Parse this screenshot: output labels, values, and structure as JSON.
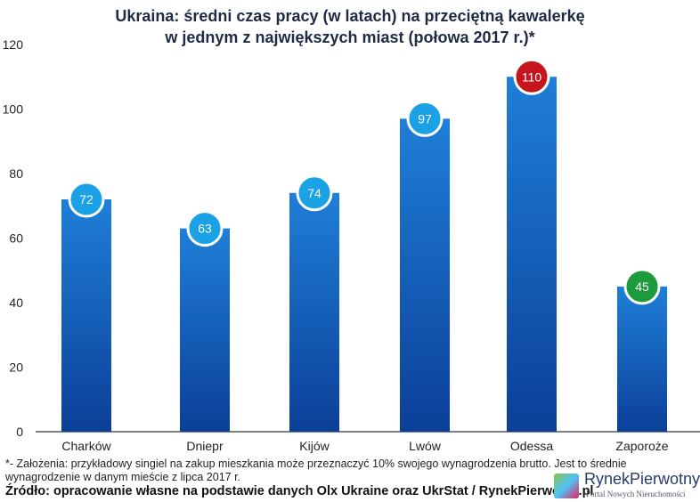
{
  "chart_data": {
    "type": "bar",
    "title": "Ukraina: średni czas pracy (w latach) na przeciętną kawalerkę w jednym z największych miast (połowa 2017 r.)*",
    "title_lines": [
      "Ukraina: średni czas pracy (w latach) na przeciętną kawalerkę",
      "w jednym z największych miast (połowa 2017 r.)*"
    ],
    "categories": [
      "Charków",
      "Dniepr",
      "Kijów",
      "Lwów",
      "Odessa",
      "Zaporoże"
    ],
    "values": [
      72,
      63,
      74,
      97,
      110,
      45
    ],
    "label_colors": [
      "#1ba1e6",
      "#1ba1e6",
      "#1ba1e6",
      "#1ba1e6",
      "#c4161c",
      "#1c9a3c"
    ],
    "ylim": [
      0,
      120
    ],
    "yticks": [
      0,
      20,
      40,
      60,
      80,
      100,
      120
    ],
    "xlabel": "",
    "ylabel": "",
    "bar_colors": {
      "top": "#1f7fd8",
      "bottom": "#0b3f98"
    }
  },
  "footnote": "*- Założenia: przykładowy singiel na zakup mieszkania może przeznaczyć 10% swojego wynagrodzenia brutto. Jest to średnie wynagrodzenie w danym mieście z lipca 2017 r.",
  "source": "Źródło: opracowanie własne na podstawie danych Olx Ukraine oraz UkrStat / RynekPierwotny.pl",
  "logo": {
    "name": "RynekPierwotny",
    "tagline": "Portal Nowych Nieruchomości"
  }
}
